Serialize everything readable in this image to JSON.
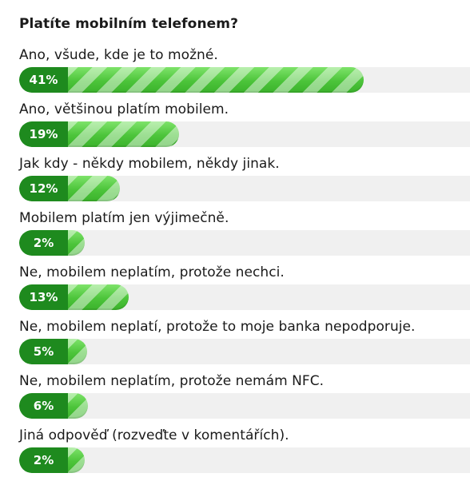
{
  "poll": {
    "title": "Platíte mobilním telefonem?",
    "options": [
      {
        "label": "Ano, všude, kde je to možné.",
        "percent_label": "41%",
        "percent": 41
      },
      {
        "label": "Ano, většinou platím mobilem.",
        "percent_label": "19%",
        "percent": 19
      },
      {
        "label": "Jak kdy - někdy mobilem, někdy jinak.",
        "percent_label": "12%",
        "percent": 12
      },
      {
        "label": "Mobilem platím jen výjimečně.",
        "percent_label": "2%",
        "percent": 2
      },
      {
        "label": "Ne, mobilem neplatím, protože nechci.",
        "percent_label": "13%",
        "percent": 13
      },
      {
        "label": "Ne, mobilem neplatí, protože to moje banka nepodporuje.",
        "percent_label": "5%",
        "percent": 5
      },
      {
        "label": "Ne, mobilem neplatím, protože nemám NFC.",
        "percent_label": "6%",
        "percent": 6
      },
      {
        "label": "Jiná odpověď (rozveďte v komentářích).",
        "percent_label": "2%",
        "percent": 2
      }
    ]
  },
  "colors": {
    "bar_fill": "#5ccc4a",
    "percent_badge": "#1e8a1e",
    "track": "#f0f0f0"
  }
}
